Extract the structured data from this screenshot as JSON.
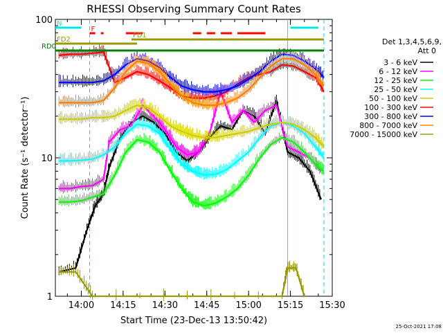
{
  "colors": {
    "background": "#ffffff",
    "axis": "#000000",
    "night": "#00e6e6",
    "flare": "#ff0000",
    "fd": "#999900",
    "rd": "#007f00"
  },
  "chart_data": {
    "type": "line",
    "title": "RHESSI Observing Summary Count Rates",
    "xlabel": "Start Time (23-Dec-13 13:50:42)",
    "ylabel": "Count Rate (s⁻¹ detector⁻¹)",
    "y_scale": "log",
    "ylim": [
      1,
      100
    ],
    "xlim": [
      "13:50:42",
      "15:30:00"
    ],
    "x_ticks": [
      "14:00",
      "14:15",
      "14:30",
      "14:45",
      "15:00",
      "15:15",
      "15:30"
    ],
    "y_ticks": [
      "1",
      "10",
      "100"
    ],
    "legend_position": "right",
    "legend_header": [
      "Det 1,3,4,5,6,9,",
      "Att 0"
    ],
    "footer_date": "25-Oct-2021 17:08",
    "series": [
      {
        "name": "3 - 6 keV",
        "color": "#000000",
        "points": [
          [
            "13:52",
            1.5
          ],
          [
            "13:58",
            1.6
          ],
          [
            "14:02",
            3.0
          ],
          [
            "14:05",
            4.5
          ],
          [
            "14:08",
            5.5
          ],
          [
            "14:10",
            8.5
          ],
          [
            "14:14",
            14
          ],
          [
            "14:18",
            18
          ],
          [
            "14:22",
            20
          ],
          [
            "14:26",
            18
          ],
          [
            "14:30",
            15
          ],
          [
            "14:34",
            11
          ],
          [
            "14:38",
            9.5
          ],
          [
            "14:42",
            11
          ],
          [
            "14:46",
            14
          ],
          [
            "14:50",
            17
          ],
          [
            "14:54",
            16
          ],
          [
            "14:58",
            22
          ],
          [
            "15:02",
            20
          ],
          [
            "15:06",
            15
          ],
          [
            "15:10",
            26
          ],
          [
            "15:14",
            11
          ],
          [
            "15:18",
            10
          ],
          [
            "15:22",
            8
          ],
          [
            "15:26",
            5
          ]
        ]
      },
      {
        "name": "6 - 12 keV",
        "color": "#ff00ff",
        "points": [
          [
            "13:52",
            6.0
          ],
          [
            "13:56",
            6.0
          ],
          [
            "14:00",
            6.2
          ],
          [
            "14:04",
            6.3
          ],
          [
            "14:08",
            7
          ],
          [
            "14:10",
            13
          ],
          [
            "14:14",
            16
          ],
          [
            "14:18",
            17
          ],
          [
            "14:22",
            24
          ],
          [
            "14:26",
            20
          ],
          [
            "14:30",
            16
          ],
          [
            "14:34",
            12
          ],
          [
            "14:38",
            10.5
          ],
          [
            "14:42",
            11
          ],
          [
            "14:46",
            15
          ],
          [
            "14:50",
            30
          ],
          [
            "14:54",
            18
          ],
          [
            "14:58",
            22
          ],
          [
            "15:02",
            18
          ],
          [
            "15:06",
            22
          ],
          [
            "15:10",
            24
          ],
          [
            "15:14",
            12
          ],
          [
            "15:18",
            11
          ],
          [
            "15:22",
            10
          ],
          [
            "15:26",
            8
          ]
        ]
      },
      {
        "name": "12 - 25 keV",
        "color": "#00ff00",
        "points": [
          [
            "13:52",
            4.8
          ],
          [
            "13:56",
            4.8
          ],
          [
            "14:00",
            4.9
          ],
          [
            "14:04",
            5.2
          ],
          [
            "14:08",
            5.5
          ],
          [
            "14:12",
            7.5
          ],
          [
            "14:16",
            11
          ],
          [
            "14:20",
            13.5
          ],
          [
            "14:24",
            13
          ],
          [
            "14:28",
            11
          ],
          [
            "14:32",
            8
          ],
          [
            "14:36",
            6
          ],
          [
            "14:40",
            4.8
          ],
          [
            "14:44",
            4.5
          ],
          [
            "14:48",
            4.7
          ],
          [
            "14:52",
            5.2
          ],
          [
            "14:56",
            6
          ],
          [
            "15:00",
            7.5
          ],
          [
            "15:04",
            10
          ],
          [
            "15:08",
            12.5
          ],
          [
            "15:12",
            14
          ],
          [
            "15:16",
            13
          ],
          [
            "15:20",
            11
          ],
          [
            "15:24",
            9
          ],
          [
            "15:27",
            8
          ]
        ]
      },
      {
        "name": "25 - 50 keV",
        "color": "#00ffff",
        "points": [
          [
            "13:52",
            9.5
          ],
          [
            "13:56",
            9.5
          ],
          [
            "14:00",
            9.6
          ],
          [
            "14:04",
            9.8
          ],
          [
            "14:08",
            10.5
          ],
          [
            "14:12",
            12
          ],
          [
            "14:16",
            15
          ],
          [
            "14:20",
            17.5
          ],
          [
            "14:24",
            17
          ],
          [
            "14:28",
            15
          ],
          [
            "14:32",
            11.5
          ],
          [
            "14:36",
            9
          ],
          [
            "14:40",
            8
          ],
          [
            "14:44",
            7.5
          ],
          [
            "14:48",
            7.6
          ],
          [
            "14:52",
            8.2
          ],
          [
            "14:56",
            9.5
          ],
          [
            "15:00",
            11
          ],
          [
            "15:04",
            14
          ],
          [
            "15:08",
            17
          ],
          [
            "15:12",
            18
          ],
          [
            "15:16",
            17
          ],
          [
            "15:20",
            15
          ],
          [
            "15:24",
            12
          ],
          [
            "15:27",
            10
          ]
        ]
      },
      {
        "name": "50 - 100 keV",
        "color": "#cccc00",
        "points": [
          [
            "13:52",
            19
          ],
          [
            "13:56",
            19
          ],
          [
            "14:00",
            19
          ],
          [
            "14:04",
            19.5
          ],
          [
            "14:08",
            19.5
          ],
          [
            "14:12",
            20
          ],
          [
            "14:16",
            22
          ],
          [
            "14:20",
            24
          ],
          [
            "14:24",
            23
          ],
          [
            "14:28",
            20
          ],
          [
            "14:32",
            17
          ],
          [
            "14:36",
            15.5
          ],
          [
            "14:40",
            14.5
          ],
          [
            "14:44",
            14
          ],
          [
            "14:48",
            14
          ],
          [
            "14:52",
            14.5
          ],
          [
            "14:56",
            15
          ],
          [
            "15:00",
            15.5
          ],
          [
            "15:04",
            16.5
          ],
          [
            "15:08",
            17.5
          ],
          [
            "15:12",
            18
          ],
          [
            "15:16",
            17.5
          ],
          [
            "15:20",
            16
          ],
          [
            "15:24",
            14
          ],
          [
            "15:27",
            12
          ]
        ]
      },
      {
        "name": "100 - 300 keV",
        "color": "#ff0000",
        "points": [
          [
            "13:52",
            55
          ],
          [
            "13:56",
            56
          ],
          [
            "14:00",
            56
          ],
          [
            "14:04",
            57
          ],
          [
            "14:08",
            58
          ],
          [
            "14:12",
            35
          ],
          [
            "14:16",
            38
          ],
          [
            "14:20",
            42
          ],
          [
            "14:24",
            40
          ],
          [
            "14:28",
            36
          ],
          [
            "14:32",
            32
          ],
          [
            "14:36",
            28
          ],
          [
            "14:40",
            27
          ],
          [
            "14:44",
            27
          ],
          [
            "14:48",
            28
          ],
          [
            "14:52",
            30
          ],
          [
            "14:56",
            34
          ],
          [
            "15:00",
            38
          ],
          [
            "15:04",
            40
          ],
          [
            "15:08",
            42
          ],
          [
            "15:12",
            47
          ],
          [
            "15:16",
            46
          ],
          [
            "15:20",
            42
          ],
          [
            "15:24",
            38
          ],
          [
            "15:27",
            30
          ]
        ]
      },
      {
        "name": "300 - 800 keV",
        "color": "#0000ff",
        "points": [
          [
            "13:52",
            35
          ],
          [
            "13:56",
            35
          ],
          [
            "14:00",
            35
          ],
          [
            "14:04",
            35
          ],
          [
            "14:08",
            36
          ],
          [
            "14:12",
            40
          ],
          [
            "14:16",
            47
          ],
          [
            "14:20",
            52
          ],
          [
            "14:24",
            50
          ],
          [
            "14:28",
            45
          ],
          [
            "14:32",
            38
          ],
          [
            "14:36",
            33
          ],
          [
            "14:40",
            31
          ],
          [
            "14:44",
            30
          ],
          [
            "14:48",
            30
          ],
          [
            "14:52",
            31
          ],
          [
            "14:56",
            33
          ],
          [
            "15:00",
            37
          ],
          [
            "15:04",
            42
          ],
          [
            "15:08",
            50
          ],
          [
            "15:12",
            56
          ],
          [
            "15:16",
            55
          ],
          [
            "15:20",
            50
          ],
          [
            "15:24",
            44
          ],
          [
            "15:27",
            38
          ]
        ]
      },
      {
        "name": "800 - 7000 keV",
        "color": "#ff8000",
        "points": [
          [
            "13:52",
            25
          ],
          [
            "13:56",
            25
          ],
          [
            "14:00",
            25
          ],
          [
            "14:04",
            25
          ],
          [
            "14:08",
            26
          ],
          [
            "14:12",
            32
          ],
          [
            "14:16",
            42
          ],
          [
            "14:20",
            50
          ],
          [
            "14:24",
            48
          ],
          [
            "14:28",
            42
          ],
          [
            "14:32",
            34
          ],
          [
            "14:36",
            28
          ],
          [
            "14:40",
            25
          ],
          [
            "14:44",
            24
          ],
          [
            "14:48",
            24
          ],
          [
            "14:52",
            25
          ],
          [
            "14:56",
            27
          ],
          [
            "15:00",
            31
          ],
          [
            "15:04",
            38
          ],
          [
            "15:08",
            46
          ],
          [
            "15:12",
            52
          ],
          [
            "15:16",
            52
          ],
          [
            "15:20",
            47
          ],
          [
            "15:24",
            40
          ],
          [
            "15:27",
            33
          ]
        ]
      },
      {
        "name": "7000 - 15000 keV",
        "color": "#999900",
        "points": [
          [
            "13:52",
            1.5
          ],
          [
            "13:58",
            1.5
          ],
          [
            "14:04",
            1
          ],
          [
            "15:12",
            1
          ],
          [
            "15:14",
            1.6
          ],
          [
            "15:17",
            1.6
          ],
          [
            "15:20",
            1
          ]
        ]
      }
    ],
    "flag_bars": [
      {
        "label": "N",
        "color": "#00e6e6",
        "segments": [
          [
            "13:50:42",
            "14:00"
          ],
          [
            "15:15",
            "15:25"
          ]
        ]
      },
      {
        "label": "F",
        "color": "#ff0000",
        "segments": [
          [
            "14:03",
            "14:05"
          ],
          [
            "14:07",
            "14:08"
          ],
          [
            "14:16",
            "14:22"
          ],
          [
            "14:40",
            "14:43"
          ],
          [
            "14:45",
            "14:48"
          ],
          [
            "14:50",
            "14:54"
          ],
          [
            "14:56",
            "15:06"
          ]
        ]
      },
      {
        "label": "FD1",
        "color": "#999900",
        "segments": [
          [
            "14:18",
            "15:27"
          ]
        ]
      },
      {
        "label": "FD2",
        "color": "#999900",
        "segments": [
          [
            "13:50:42",
            "14:20"
          ]
        ]
      },
      {
        "label": "RD0",
        "color": "#007f00",
        "segments": [
          [
            "13:50:42",
            "15:27"
          ]
        ]
      }
    ],
    "night_lines": [
      {
        "time": "14:03",
        "style": "dashed"
      },
      {
        "time": "15:14",
        "style": "solid"
      },
      {
        "time": "15:27",
        "style": "dashed"
      }
    ]
  }
}
